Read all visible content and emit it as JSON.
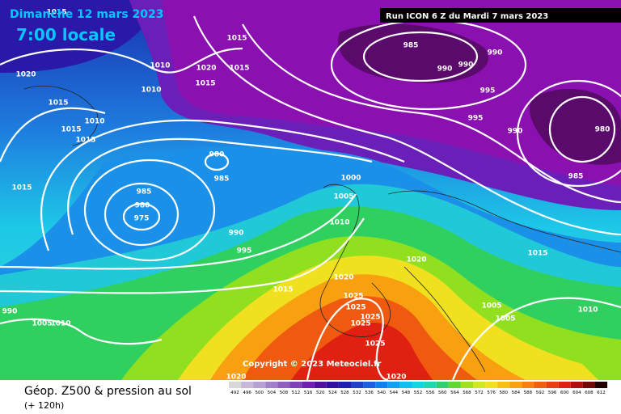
{
  "header": {
    "date": "Dimanche 12 mars 2023",
    "time": "7:00 locale",
    "run": "Run ICON 6 Z du Mardi 7 mars 2023"
  },
  "footer": {
    "title": "Géop. Z500 & pression au sol",
    "lead": "(+ 120h)",
    "copyright": "Copyright © 2023 Meteociel.fr"
  },
  "scale": [
    492,
    496,
    500,
    504,
    508,
    512,
    516,
    520,
    524,
    528,
    532,
    536,
    540,
    544,
    548,
    552,
    556,
    560,
    564,
    568,
    572,
    576,
    580,
    584,
    588,
    592,
    596,
    600,
    604,
    608,
    612
  ],
  "isobar_labels": [
    "985",
    "990",
    "990",
    "990",
    "995",
    "995",
    "990",
    "980",
    "985",
    "980",
    "985",
    "985",
    "980",
    "975",
    "990",
    "995",
    "1000",
    "1005",
    "1010",
    "1015",
    "1015",
    "1015",
    "1020",
    "1010",
    "1010",
    "1020",
    "1015",
    "1010",
    "1015",
    "1015",
    "1015",
    "1015",
    "1020",
    "1020",
    "1015",
    "1025",
    "1025",
    "1025",
    "1025",
    "1025",
    "1005",
    "1005",
    "1010",
    "1010",
    "1005",
    "990",
    "1020",
    "1020",
    "1015"
  ]
}
